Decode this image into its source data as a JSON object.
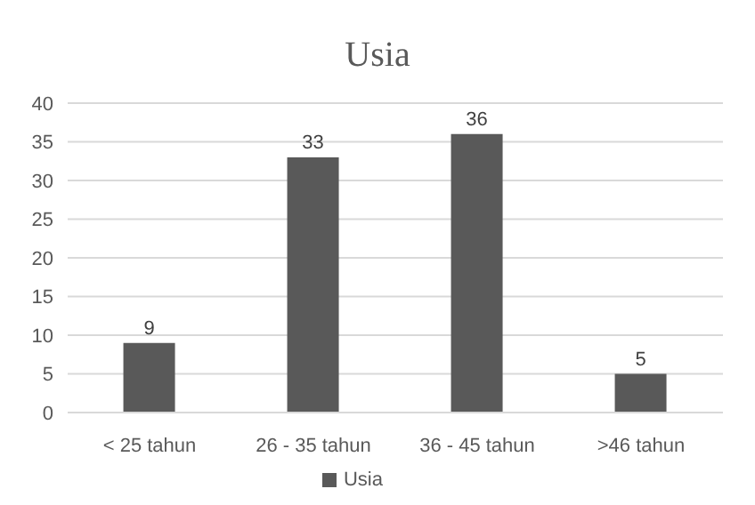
{
  "chart_data": {
    "type": "bar",
    "title": "Usia",
    "categories": [
      "< 25 tahun",
      "26 - 35 tahun",
      "36 - 45 tahun",
      ">46 tahun"
    ],
    "series": [
      {
        "name": "Usia",
        "color": "#595959",
        "values": [
          9,
          33,
          36,
          5
        ]
      }
    ],
    "ylim": [
      0,
      40
    ],
    "yticks": [
      0,
      5,
      10,
      15,
      20,
      25,
      30,
      35,
      40
    ],
    "grid": "y",
    "data_labels": true,
    "legend": "bottom"
  }
}
